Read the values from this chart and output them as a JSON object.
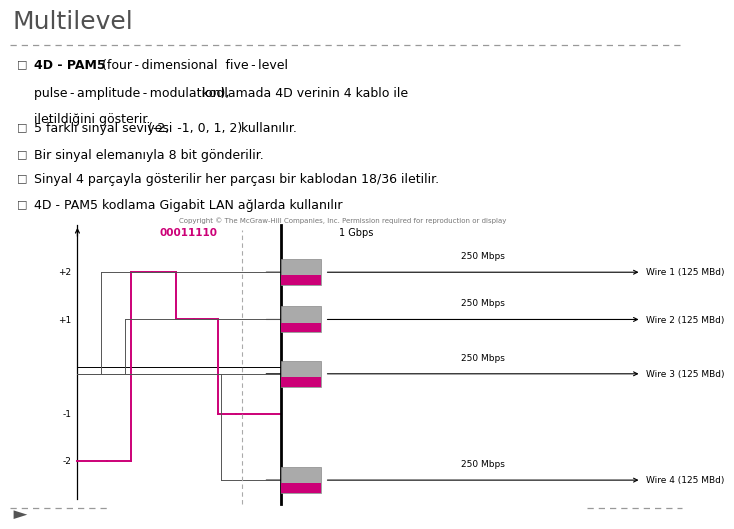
{
  "title": "Multilevel",
  "bg_color": "#ffffff",
  "title_color": "#505050",
  "separator_color": "#999999",
  "bullet_color": "#404040",
  "signal_pink_color": "#cc0077",
  "signal_gray_color": "#555555",
  "wire_box_fill": "#aaaaaa",
  "wire_box_edge": "#888888",
  "arrow_color": "#111111",
  "label_00011110_color": "#cc0077",
  "copyright_color": "#777777",
  "wire_labels": [
    "Wire 1 (125 MBd)",
    "Wire 2 (125 MBd)",
    "Wire 3 (125 MBd)",
    "Wire 4 (125 MBd)"
  ],
  "mbps_labels": [
    "250 Mbps",
    "250 Mbps",
    "250 Mbps",
    "250 Mbps"
  ],
  "title_fontsize": 18,
  "bullet_fontsize": 9,
  "diagram_fontsize": 7,
  "small_fontsize": 5
}
